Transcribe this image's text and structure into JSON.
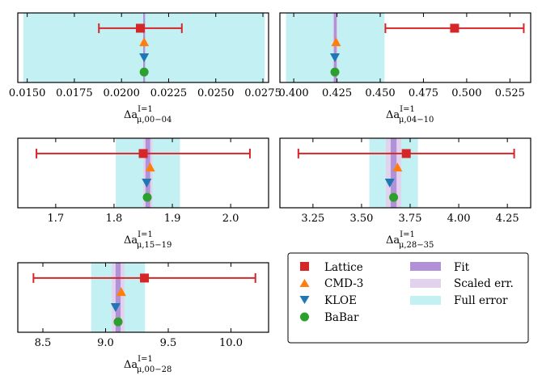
{
  "figure": {
    "series_names": {
      "lattice": "Lattice",
      "cmd3": "CMD-3",
      "kloe": "KLOE",
      "babar": "BaBar"
    },
    "colors": {
      "lattice": "#d62728",
      "cmd3": "#ff7f0e",
      "kloe": "#1f77b4",
      "babar": "#2ca02c",
      "fit": "#b292d6",
      "scaled": "#e2d2ee",
      "full": "#c3f1f3"
    },
    "legend": {
      "position": "lower-right",
      "entries": [
        "Lattice",
        "CMD-3",
        "KLOE",
        "BaBar",
        "Fit",
        "Scaled err.",
        "Full error"
      ]
    }
  },
  "chart_data": [
    {
      "type": "errorbar",
      "xlabel_base": "Δa",
      "xlabel_sup": "I=1",
      "xlabel_sub": "μ,00−04",
      "xlim": [
        0.0145,
        0.0278
      ],
      "ticks": [
        0.015,
        0.0175,
        0.02,
        0.0225,
        0.025,
        0.0275
      ],
      "tick_labels": [
        "0.0150",
        "0.0175",
        "0.0200",
        "0.0225",
        "0.0250",
        "0.0275"
      ],
      "fit": {
        "center": 0.0212,
        "fit_err": 5e-05,
        "scaled_err": 5e-05,
        "full_err": 0.0064
      },
      "lattice": {
        "value": 0.021,
        "err": 0.0022
      },
      "cmd3": 0.0212,
      "kloe": 0.0212,
      "babar": 0.0212
    },
    {
      "type": "errorbar",
      "xlabel_base": "Δa",
      "xlabel_sup": "I=1",
      "xlabel_sub": "μ,04−10",
      "xlim": [
        0.392,
        0.537
      ],
      "ticks": [
        0.4,
        0.425,
        0.45,
        0.475,
        0.5,
        0.525
      ],
      "tick_labels": [
        "0.400",
        "0.425",
        "0.450",
        "0.475",
        "0.500",
        "0.525"
      ],
      "fit": {
        "center": 0.424,
        "fit_err": 0.0008,
        "scaled_err": 0.0013,
        "full_err": 0.0285
      },
      "lattice": {
        "value": 0.493,
        "err": 0.04
      },
      "cmd3": 0.4245,
      "kloe": 0.4238,
      "babar": 0.4238
    },
    {
      "type": "errorbar",
      "xlabel_base": "Δa",
      "xlabel_sup": "I=1",
      "xlabel_sub": "μ,15−19",
      "xlim": [
        1.635,
        2.065
      ],
      "ticks": [
        1.7,
        1.8,
        1.9,
        2.0
      ],
      "tick_labels": [
        "1.7",
        "1.8",
        "1.9",
        "2.0"
      ],
      "fit": {
        "center": 1.858,
        "fit_err": 0.004,
        "scaled_err": 0.008,
        "full_err": 0.055
      },
      "lattice": {
        "value": 1.85,
        "err": 0.183
      },
      "cmd3": 1.862,
      "kloe": 1.856,
      "babar": 1.857
    },
    {
      "type": "errorbar",
      "xlabel_base": "Δa",
      "xlabel_sup": "I=1",
      "xlabel_sub": "μ,28−35",
      "xlim": [
        3.08,
        4.37
      ],
      "ticks": [
        3.25,
        3.5,
        3.75,
        4.0,
        4.25
      ],
      "tick_labels": [
        "3.25",
        "3.50",
        "3.75",
        "4.00",
        "4.25"
      ],
      "fit": {
        "center": 3.665,
        "fit_err": 0.015,
        "scaled_err": 0.04,
        "full_err": 0.125
      },
      "lattice": {
        "value": 3.73,
        "err": 0.555
      },
      "cmd3": 3.685,
      "kloe": 3.645,
      "babar": 3.665
    },
    {
      "type": "errorbar",
      "xlabel_base": "Δa",
      "xlabel_sup": "I=1",
      "xlabel_sub": "μ,00−28",
      "xlim": [
        8.3,
        10.3
      ],
      "ticks": [
        8.5,
        9.0,
        9.5,
        10.0
      ],
      "tick_labels": [
        "8.5",
        "9.0",
        "9.5",
        "10.0"
      ],
      "fit": {
        "center": 9.1,
        "fit_err": 0.02,
        "scaled_err": 0.05,
        "full_err": 0.215
      },
      "lattice": {
        "value": 9.31,
        "err": 0.885
      },
      "cmd3": 9.125,
      "kloe": 9.08,
      "babar": 9.1
    }
  ]
}
